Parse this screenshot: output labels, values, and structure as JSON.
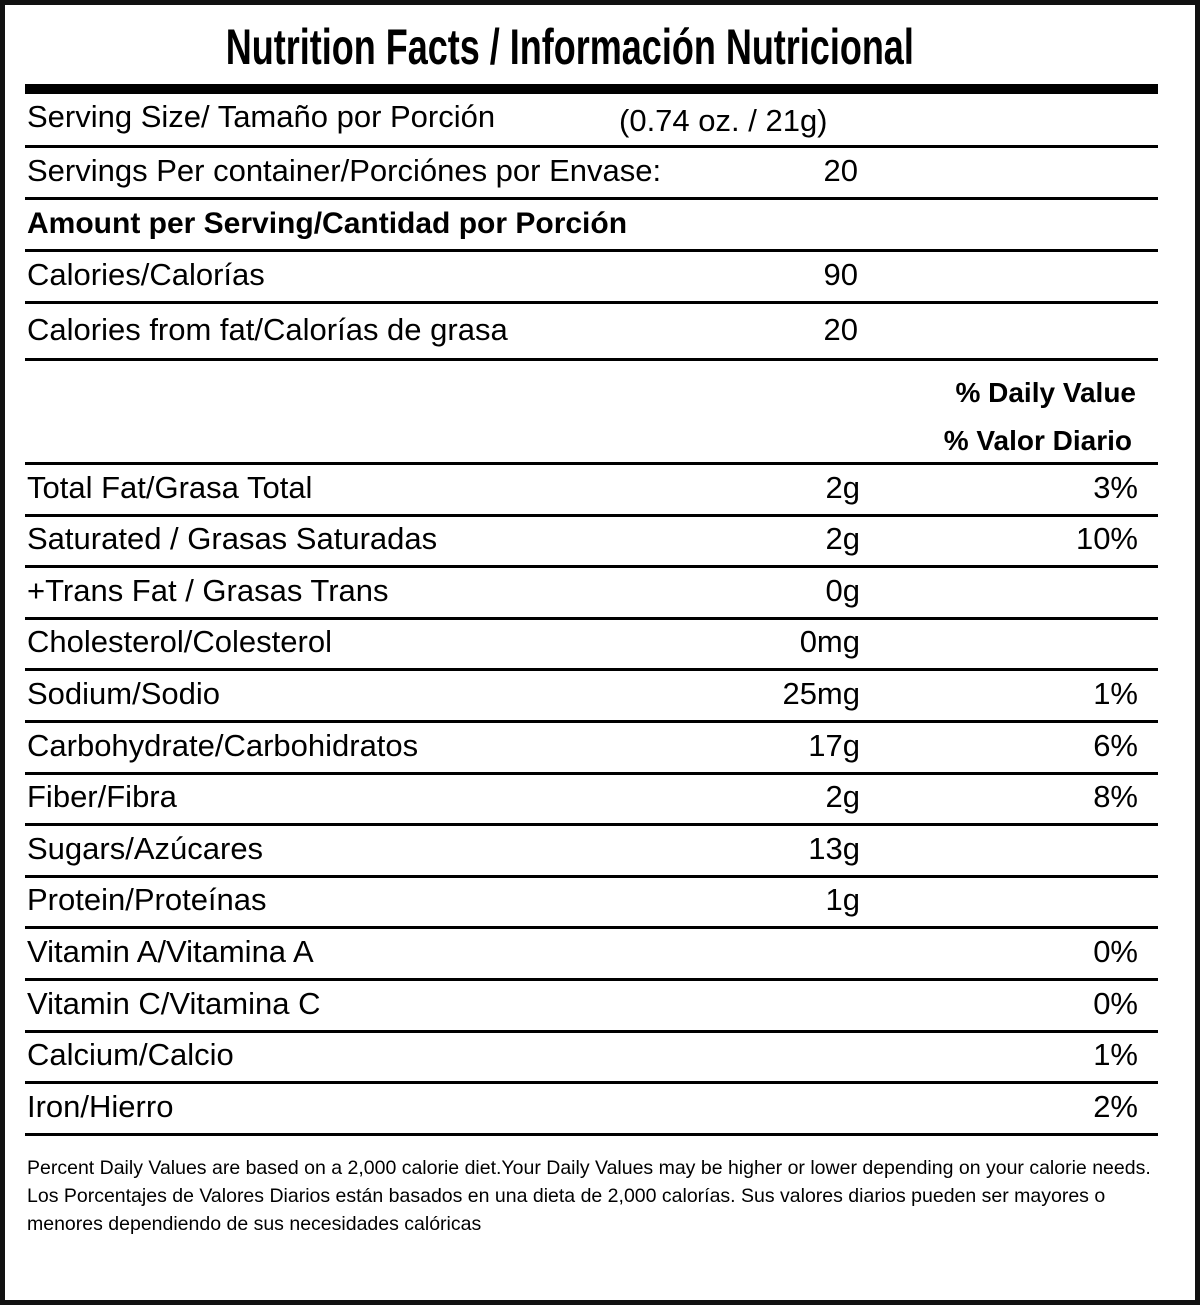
{
  "title": "Nutrition Facts / Información Nutricional",
  "serving_size": {
    "label": "Serving Size/ Tamaño por Porción",
    "value": "(0.74 oz. / 21g)"
  },
  "servings_per_container": {
    "label": "Servings Per container/Porciónes por Envase:",
    "value": "20"
  },
  "amount_per_serving": "Amount per Serving/Cantidad por Porción",
  "calories": {
    "label": "Calories/Calorías",
    "value": "90"
  },
  "calories_from_fat": {
    "label": "Calories from fat/Calorías de grasa",
    "value": "20"
  },
  "daily_value_header": {
    "line1": "% Daily Value",
    "line2": "% Valor Diario"
  },
  "nutrients": [
    {
      "label": "Total Fat/Grasa Total",
      "amount": "2g",
      "dv": "3%"
    },
    {
      "label": " Saturated / Grasas Saturadas",
      "amount": "2g",
      "dv": "10%"
    },
    {
      "label": "+Trans Fat / Grasas Trans",
      "amount": "0g",
      "dv": ""
    },
    {
      "label": "Cholesterol/Colesterol",
      "amount": "0mg",
      "dv": ""
    },
    {
      "label": "Sodium/Sodio",
      "amount": "25mg",
      "dv": "1%"
    },
    {
      "label": "Carbohydrate/Carbohidratos",
      "amount": "17g",
      "dv": "6%"
    },
    {
      "label": "Fiber/Fibra",
      "amount": "2g",
      "dv": "8%"
    },
    {
      "label": "Sugars/Azúcares",
      "amount": "13g",
      "dv": ""
    },
    {
      "label": "Protein/Proteínas",
      "amount": "1g",
      "dv": ""
    },
    {
      "label": "Vitamin A/Vitamina A",
      "amount": "",
      "dv": "0%"
    },
    {
      "label": "Vitamin C/Vitamina C",
      "amount": "",
      "dv": "0%"
    },
    {
      "label": "Calcium/Calcio",
      "amount": "",
      "dv": "1%"
    },
    {
      "label": "Iron/Hierro",
      "amount": "",
      "dv": "2%"
    }
  ],
  "footer": {
    "english": "Percent Daily Values are based on a 2,000 calorie diet.Your Daily Values may be higher or lower depending on your calorie needs.",
    "spanish": "Los Porcentajes de Valores Diarios están basados en una dieta de 2,000 calorías. Sus valores diarios pueden ser mayores o menores dependiendo de sus necesidades calóricas"
  }
}
